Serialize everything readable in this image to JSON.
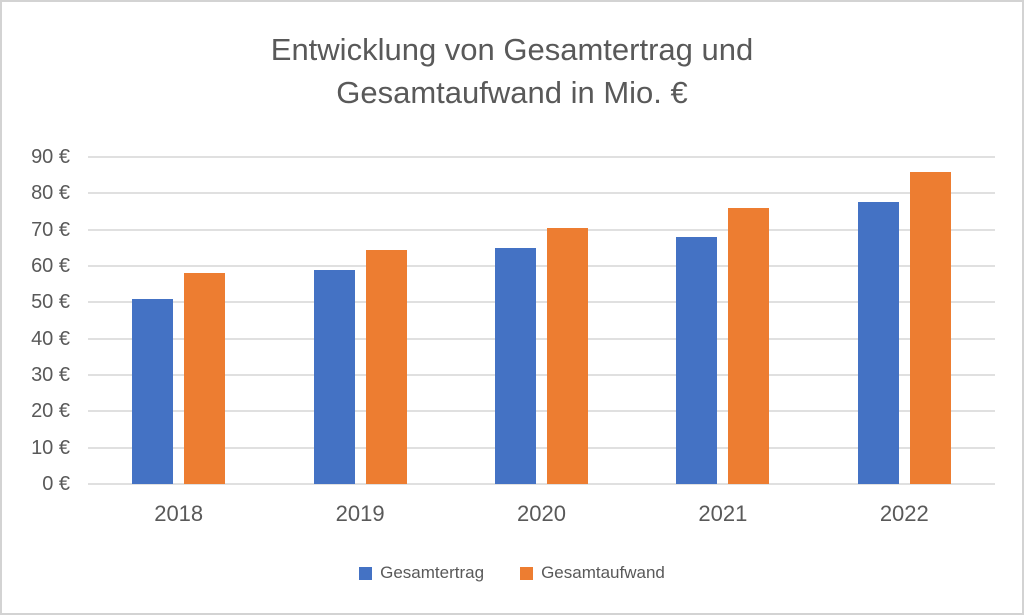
{
  "frame": {
    "background": "#ffffff",
    "border_color": "#d3d3d3"
  },
  "chart_data": {
    "type": "bar",
    "title": "Entwicklung von Gesamtertrag und Gesamtaufwand in Mio. €",
    "title_lines": [
      "Entwicklung von Gesamtertrag und",
      "Gesamtaufwand in Mio. €"
    ],
    "categories": [
      "2018",
      "2019",
      "2020",
      "2021",
      "2022"
    ],
    "series": [
      {
        "name": "Gesamtertrag",
        "color": "#4472C4",
        "values": [
          51,
          59,
          65,
          68,
          77.5
        ]
      },
      {
        "name": "Gesamtaufwand",
        "color": "#ED7D31",
        "values": [
          58,
          64.5,
          70.5,
          76,
          86
        ]
      }
    ],
    "xlabel": "",
    "ylabel": "",
    "ylim": [
      0,
      90
    ],
    "ytick_values": [
      0,
      10,
      20,
      30,
      40,
      50,
      60,
      70,
      80,
      90
    ],
    "ytick_labels": [
      "0 €",
      "10 €",
      "20 €",
      "30 €",
      "40 €",
      "50 €",
      "60 €",
      "70 €",
      "80 €",
      "90 €"
    ],
    "grid": true,
    "grid_color": "#e0e0e0",
    "legend_position": "bottom",
    "text_color": "#595959"
  }
}
